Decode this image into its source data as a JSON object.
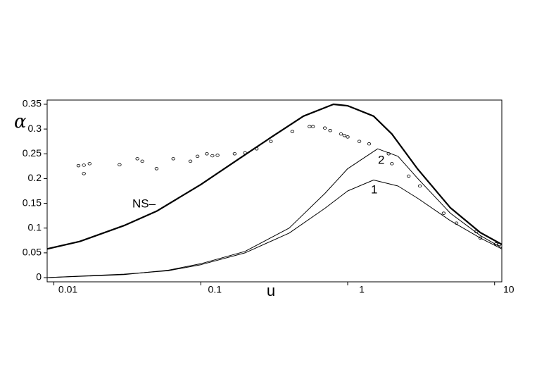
{
  "chart_data": {
    "type": "line",
    "x_label": "u",
    "y_label": "α",
    "log_x": true,
    "xlim": [
      0.009,
      11.2
    ],
    "ylim": [
      -0.0085,
      0.3585
    ],
    "xticks": [
      0.01,
      0.1,
      1,
      10
    ],
    "yticks": [
      0,
      0.05,
      0.1,
      0.15,
      0.2,
      0.25,
      0.3,
      0.35
    ],
    "series": [
      {
        "name": "NS–",
        "type": "line",
        "color": "#000000",
        "width": 2.2,
        "x": [
          0.009,
          0.015,
          0.03,
          0.05,
          0.1,
          0.2,
          0.3,
          0.5,
          0.8,
          1.0,
          1.5,
          2,
          3,
          5,
          8,
          11.2
        ],
        "values": [
          0.058,
          0.073,
          0.105,
          0.134,
          0.188,
          0.248,
          0.283,
          0.326,
          0.35,
          0.347,
          0.326,
          0.29,
          0.219,
          0.141,
          0.091,
          0.067
        ]
      },
      {
        "name": "2",
        "type": "line",
        "color": "#000000",
        "width": 1,
        "x": [
          0.009,
          0.03,
          0.06,
          0.1,
          0.2,
          0.4,
          0.7,
          1.0,
          1.6,
          2.2,
          3,
          5,
          8,
          11.2
        ],
        "values": [
          0.0,
          0.006,
          0.015,
          0.028,
          0.053,
          0.1,
          0.17,
          0.22,
          0.26,
          0.245,
          0.2,
          0.13,
          0.085,
          0.06
        ]
      },
      {
        "name": "1",
        "type": "line",
        "color": "#000000",
        "width": 1,
        "x": [
          0.009,
          0.03,
          0.06,
          0.1,
          0.2,
          0.4,
          0.7,
          1.0,
          1.5,
          2.2,
          3,
          5,
          8,
          11.2
        ],
        "values": [
          0.0,
          0.007,
          0.014,
          0.026,
          0.05,
          0.09,
          0.14,
          0.175,
          0.197,
          0.185,
          0.16,
          0.115,
          0.08,
          0.058
        ]
      },
      {
        "type": "scatter",
        "color": "#000000",
        "x": [
          0.0147,
          0.016,
          0.016,
          0.0175,
          0.028,
          0.037,
          0.04,
          0.05,
          0.065,
          0.085,
          0.095,
          0.11,
          0.12,
          0.13,
          0.17,
          0.2,
          0.24,
          0.3,
          0.42,
          0.55,
          0.58,
          0.7,
          0.76,
          0.9,
          0.95,
          1.0,
          1.2,
          1.4,
          1.9,
          2.0,
          2.6,
          3.1,
          4.5,
          5.5,
          7.5,
          8.0,
          10.2,
          10.8
        ],
        "values": [
          0.226,
          0.21,
          0.227,
          0.23,
          0.228,
          0.24,
          0.235,
          0.22,
          0.24,
          0.235,
          0.245,
          0.25,
          0.246,
          0.247,
          0.25,
          0.252,
          0.26,
          0.275,
          0.295,
          0.305,
          0.305,
          0.302,
          0.297,
          0.29,
          0.287,
          0.284,
          0.275,
          0.27,
          0.25,
          0.23,
          0.205,
          0.185,
          0.13,
          0.11,
          0.093,
          0.08,
          0.068,
          0.067
        ]
      }
    ]
  }
}
